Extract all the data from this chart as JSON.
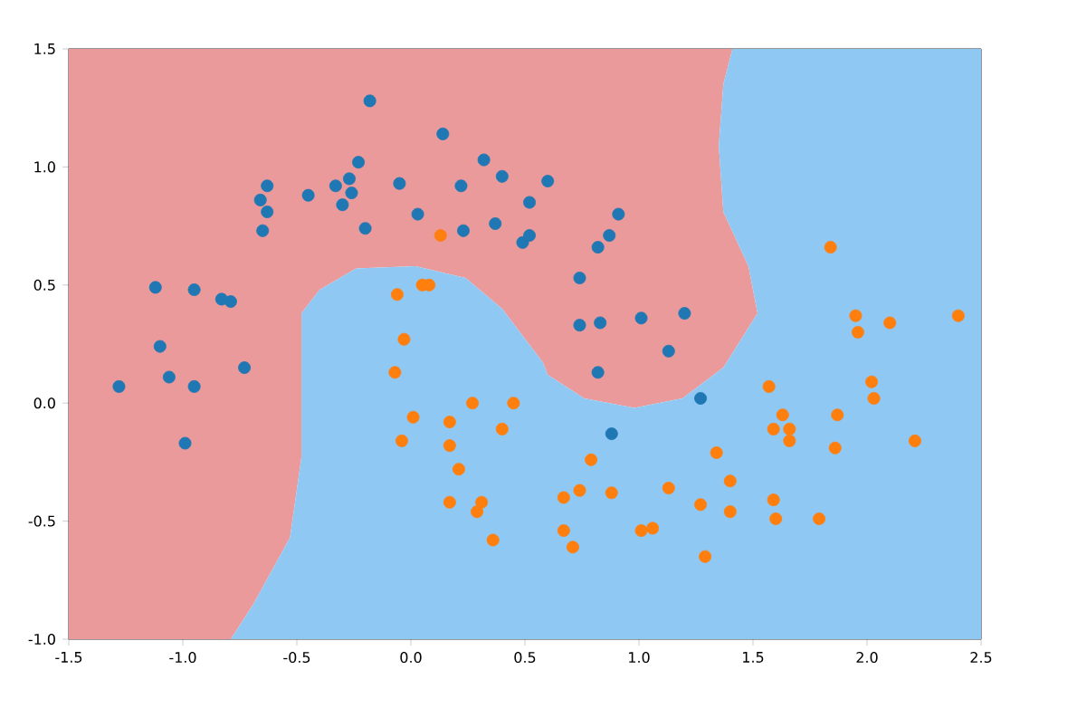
{
  "chart_data": {
    "type": "scatter",
    "grid": false,
    "xlim": [
      -1.5,
      2.5
    ],
    "ylim": [
      -1.0,
      1.5
    ],
    "xticks": [
      -1.5,
      {
        "value": -1.0,
        "label": "-1.0"
      },
      -0.5,
      {
        "value": 0.0,
        "label": "0.0"
      },
      0.5,
      {
        "value": 1.0,
        "label": "1.0"
      },
      1.5,
      {
        "value": 2.0,
        "label": "2.0"
      },
      2.5
    ],
    "yticks": [
      {
        "value": -1.0,
        "label": "-1.0"
      },
      -0.5,
      {
        "value": 0.0,
        "label": "0.0"
      },
      0.5,
      {
        "value": 1.0,
        "label": "1.0"
      },
      1.5
    ],
    "series": [
      {
        "type": "area",
        "marker": "none",
        "color": "#eb9a9b",
        "x": [
          -1.5,
          -0.79,
          -0.69,
          -0.53,
          -0.48,
          -0.48,
          -0.4,
          -0.24,
          0.02,
          0.24,
          0.4,
          0.58,
          0.6,
          0.76,
          0.98,
          1.19,
          1.37,
          1.52,
          1.48,
          1.37,
          1.35,
          1.37,
          1.41,
          -1.5
        ],
        "values": [
          -1.0,
          -1.0,
          -0.85,
          -0.57,
          -0.23,
          0.38,
          0.48,
          0.57,
          0.58,
          0.53,
          0.4,
          0.17,
          0.12,
          0.02,
          -0.02,
          0.02,
          0.15,
          0.38,
          0.58,
          0.81,
          1.09,
          1.35,
          1.5,
          1.5
        ]
      },
      {
        "type": "area",
        "marker": "none",
        "color": "#90c8f4",
        "x": [
          -0.79,
          -0.69,
          -0.53,
          -0.48,
          -0.48,
          -0.4,
          -0.24,
          0.02,
          0.24,
          0.4,
          0.58,
          0.6,
          0.76,
          0.98,
          1.19,
          1.37,
          1.52,
          1.48,
          1.37,
          1.35,
          1.37,
          1.41,
          2.5,
          2.5
        ],
        "values": [
          -1.0,
          -0.85,
          -0.57,
          -0.23,
          0.38,
          0.48,
          0.57,
          0.58,
          0.53,
          0.4,
          0.17,
          0.12,
          0.02,
          -0.02,
          0.02,
          0.15,
          0.38,
          0.58,
          0.81,
          1.09,
          1.35,
          1.5,
          1.5,
          -1.0
        ]
      },
      {
        "marker": "circle",
        "color": "#1f77b4",
        "x": [
          -1.28,
          -1.12,
          -1.1,
          -1.06,
          -0.95,
          -0.95,
          -0.99,
          -0.83,
          -0.79,
          -0.73,
          -0.65,
          -0.63,
          -0.66,
          -0.63,
          -0.45,
          -0.33,
          -0.27,
          -0.3,
          -0.26,
          -0.23,
          -0.18,
          -0.2,
          -0.05,
          0.03,
          0.14,
          0.22,
          0.23,
          0.32,
          0.4,
          0.37,
          0.6,
          0.52,
          0.49,
          0.52,
          0.91,
          0.87,
          0.82,
          0.74,
          0.74,
          0.83,
          1.01,
          1.2,
          1.13,
          0.82,
          1.27,
          0.88
        ],
        "values": [
          0.07,
          0.49,
          0.24,
          0.11,
          0.48,
          0.07,
          -0.17,
          0.44,
          0.43,
          0.15,
          0.73,
          0.92,
          0.86,
          0.81,
          0.88,
          0.92,
          0.95,
          0.84,
          0.89,
          1.02,
          1.28,
          0.74,
          0.93,
          0.8,
          1.14,
          0.92,
          0.73,
          1.03,
          0.96,
          0.76,
          0.94,
          0.85,
          0.68,
          0.71,
          0.8,
          0.71,
          0.66,
          0.53,
          0.33,
          0.34,
          0.36,
          0.38,
          0.22,
          0.13,
          0.02,
          -0.13
        ]
      },
      {
        "marker": "circle",
        "color": "#ff7f0e",
        "x": [
          0.13,
          -0.06,
          0.05,
          0.08,
          -0.03,
          -0.07,
          0.01,
          -0.04,
          0.17,
          0.17,
          0.27,
          0.45,
          0.4,
          0.21,
          0.17,
          0.31,
          0.29,
          0.36,
          0.79,
          0.67,
          0.74,
          0.88,
          0.67,
          0.71,
          1.01,
          1.06,
          1.13,
          1.27,
          1.34,
          1.4,
          1.4,
          1.29,
          1.57,
          1.63,
          1.59,
          1.66,
          1.66,
          1.59,
          1.6,
          1.79,
          1.84,
          1.87,
          1.86,
          1.95,
          1.96,
          2.1,
          2.02,
          2.03,
          2.21,
          2.4
        ],
        "values": [
          0.71,
          0.46,
          0.5,
          0.5,
          0.27,
          0.13,
          -0.06,
          -0.16,
          -0.08,
          -0.18,
          0.0,
          0.0,
          -0.11,
          -0.28,
          -0.42,
          -0.42,
          -0.46,
          -0.58,
          -0.24,
          -0.4,
          -0.37,
          -0.38,
          -0.54,
          -0.61,
          -0.54,
          -0.53,
          -0.36,
          -0.43,
          -0.21,
          -0.33,
          -0.46,
          -0.65,
          0.07,
          -0.05,
          -0.11,
          -0.11,
          -0.16,
          -0.41,
          -0.49,
          -0.49,
          0.66,
          -0.05,
          -0.19,
          0.37,
          0.3,
          0.34,
          0.09,
          0.02,
          -0.16,
          0.37
        ]
      }
    ]
  }
}
